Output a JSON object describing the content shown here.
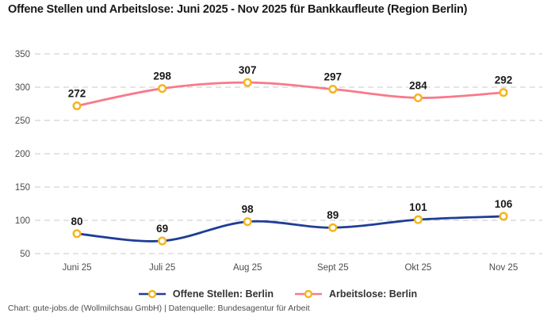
{
  "title": "Offene Stellen und Arbeitslose: Juni 2025 - Nov 2025 für Bankkaufleute (Region Berlin)",
  "footer": "Chart: gute-jobs.de (Wollmilchsau GmbH) | Datenquelle: Bundesagentur für Arbeit",
  "legend": {
    "items": [
      {
        "label": "Offene Stellen: Berlin",
        "color": "#203d96"
      },
      {
        "label": "Arbeitslose: Berlin",
        "color": "#f9798a"
      }
    ]
  },
  "chart_data": {
    "type": "line",
    "title": "Offene Stellen und Arbeitslose: Juni 2025 - Nov 2025 für Bankkaufleute (Region Berlin)",
    "categories": [
      "Juni 25",
      "Juli 25",
      "Aug 25",
      "Sept 25",
      "Okt 25",
      "Nov 25"
    ],
    "series": [
      {
        "name": "Offene Stellen: Berlin",
        "color": "#203d96",
        "values": [
          80,
          69,
          98,
          89,
          101,
          106
        ]
      },
      {
        "name": "Arbeitslose: Berlin",
        "color": "#f9798a",
        "values": [
          272,
          298,
          307,
          297,
          284,
          292
        ]
      }
    ],
    "ylim": [
      50,
      350
    ],
    "yticks": [
      50,
      100,
      150,
      200,
      250,
      300,
      350
    ],
    "grid": "horizontal-dashed",
    "curve": "smooth",
    "data_labels": true,
    "legend_position": "bottom-center",
    "marker": {
      "shape": "circle",
      "fill": "#ffffff",
      "stroke": "#f3b61f"
    }
  },
  "colors": {
    "background": "#ffffff",
    "title": "#191919",
    "grid": "#c9c9c9",
    "tick_label": "#4d4d4d",
    "data_label": "#1a1a1a",
    "legend_text": "#333333",
    "footer_text": "#4d4d4d"
  }
}
